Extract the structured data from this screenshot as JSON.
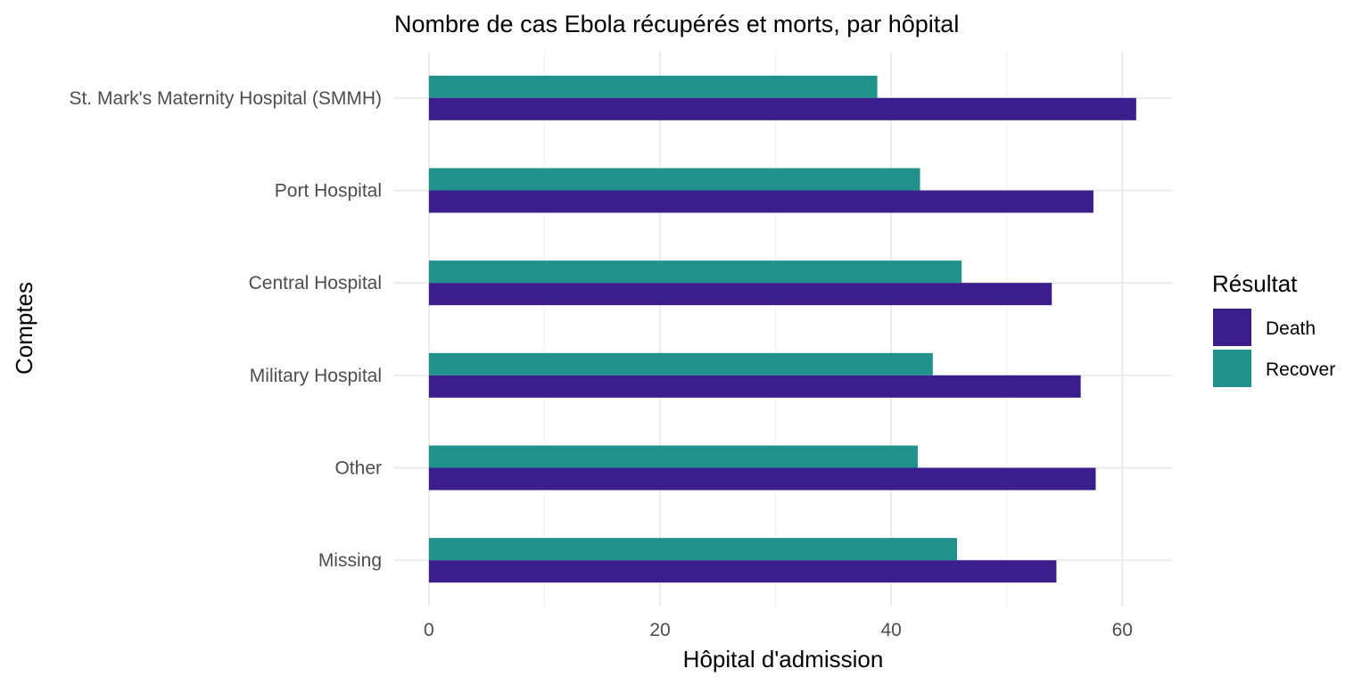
{
  "chart_data": {
    "type": "bar",
    "orientation": "horizontal",
    "title": "Nombre de cas Ebola récupérés et morts, par hôpital",
    "xlabel": "Hôpital d'admission",
    "ylabel": "Comptes",
    "categories": [
      "St. Mark's Maternity Hospital (SMMH)",
      "Port Hospital",
      "Central Hospital",
      "Military Hospital",
      "Other",
      "Missing"
    ],
    "series": [
      {
        "name": "Death",
        "color": "#3b1e8c",
        "values": [
          61.2,
          57.5,
          53.9,
          56.4,
          57.7,
          54.3
        ]
      },
      {
        "name": "Recover",
        "color": "#21928b",
        "values": [
          38.8,
          42.5,
          46.1,
          43.6,
          42.3,
          45.7
        ]
      }
    ],
    "xlim": [
      -3,
      64.3
    ],
    "xticks": [
      0,
      20,
      40,
      60
    ],
    "xtick_labels": [
      "0",
      "20",
      "40",
      "60"
    ],
    "grid": true,
    "legend": {
      "title": "Résultat",
      "position": "right",
      "entries": [
        "Death",
        "Recover"
      ]
    }
  }
}
